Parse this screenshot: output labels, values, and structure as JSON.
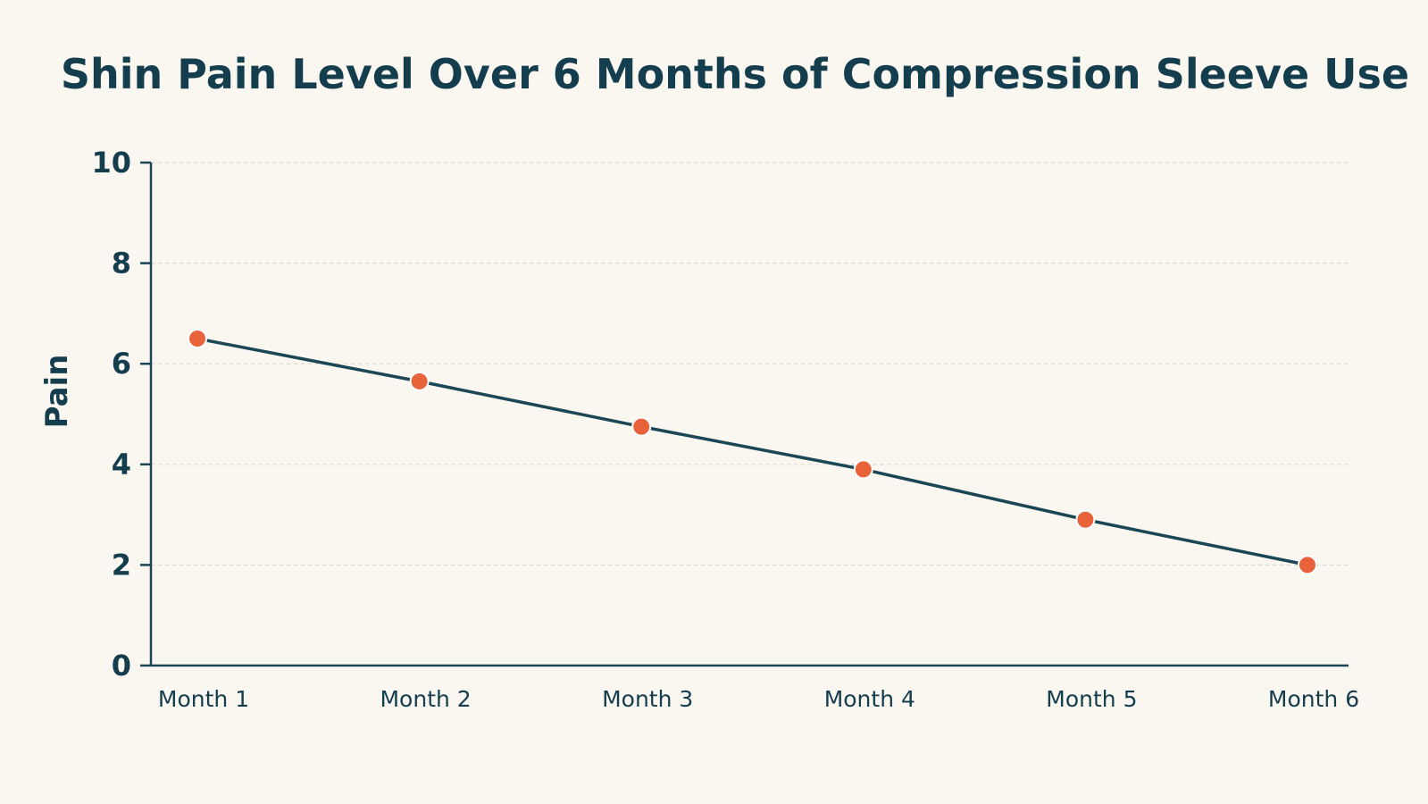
{
  "chart_data": {
    "type": "line",
    "title": "Shin Pain Level Over 6 Months of Compression Sleeve Use",
    "xlabel": "",
    "ylabel": "Pain",
    "categories": [
      "Month 1",
      "Month 2",
      "Month 3",
      "Month 4",
      "Month 5",
      "Month 6"
    ],
    "series": [
      {
        "values": [
          6.5,
          5.65,
          4.75,
          3.9,
          2.9,
          2.0
        ]
      }
    ],
    "ylim": [
      0,
      10
    ],
    "yticks": [
      0,
      2,
      4,
      6,
      8,
      10
    ],
    "grid": true,
    "legend": "none",
    "colors": {
      "background": "#faf7f0",
      "line": "#1a4655",
      "marker": "#e8623a",
      "text": "#143d4e",
      "grid": "#d9d5cc",
      "axis": "#1a4655"
    }
  }
}
